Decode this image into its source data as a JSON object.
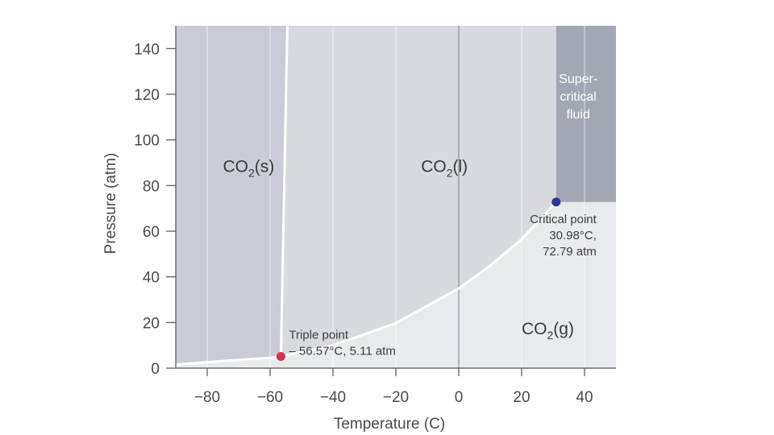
{
  "chart_data": {
    "type": "phase-diagram",
    "xlabel": "Temperature (C)",
    "ylabel": "Pressure (atm)",
    "xlim": [
      -90,
      50
    ],
    "ylim": [
      0,
      150
    ],
    "x_ticks": [
      -80,
      -60,
      -40,
      -20,
      0,
      20,
      40
    ],
    "x_tick_labels": [
      "−80",
      "−60",
      "−40",
      "−20",
      "0",
      "20",
      "40"
    ],
    "y_ticks": [
      0,
      20,
      40,
      60,
      80,
      100,
      120,
      140
    ],
    "y_tick_labels": [
      "0",
      "20",
      "40",
      "60",
      "80",
      "100",
      "120",
      "140"
    ],
    "grid": "vertical",
    "regions": [
      {
        "id": "solid",
        "label_main": "CO",
        "label_sub": "2",
        "label_tail": "(s)",
        "color": "#c9ccd6",
        "label_at": [
          -75,
          88
        ]
      },
      {
        "id": "liquid",
        "label_main": "CO",
        "label_sub": "2",
        "label_tail": "(l)",
        "color": "#d8dae0",
        "label_at": [
          -12,
          88
        ]
      },
      {
        "id": "gas",
        "label_main": "CO",
        "label_sub": "2",
        "label_tail": "(g)",
        "color": "#e9eaed",
        "label_at": [
          20,
          17
        ]
      },
      {
        "id": "supercritical",
        "label_lines": [
          "Super-",
          "critical",
          "fluid"
        ],
        "color": "#a3a7b3",
        "label_at": [
          38,
          120
        ]
      }
    ],
    "boundaries": {
      "sublimation": [
        [
          -90,
          1.5
        ],
        [
          -80,
          2.6
        ],
        [
          -70,
          3.6
        ],
        [
          -60,
          4.5
        ],
        [
          -56.57,
          5.11
        ]
      ],
      "vaporization": [
        [
          -56.57,
          5.11
        ],
        [
          -40,
          10.0
        ],
        [
          -20,
          19.7
        ],
        [
          0,
          34.9
        ],
        [
          10,
          44.9
        ],
        [
          20,
          56.5
        ],
        [
          30.98,
          72.79
        ]
      ],
      "fusion": [
        [
          -56.57,
          5.11
        ],
        [
          -54.5,
          150
        ]
      ]
    },
    "points": [
      {
        "name": "triple",
        "x": -56.57,
        "y": 5.11,
        "color": "#d9304a",
        "text_lines": [
          "Triple point",
          "– 56.57°C, 5.11 atm"
        ]
      },
      {
        "name": "critical",
        "x": 30.98,
        "y": 72.79,
        "color": "#2b3990",
        "text_lines": [
          "Critical point",
          "30.98°C,",
          "72.79 atm"
        ]
      }
    ]
  }
}
